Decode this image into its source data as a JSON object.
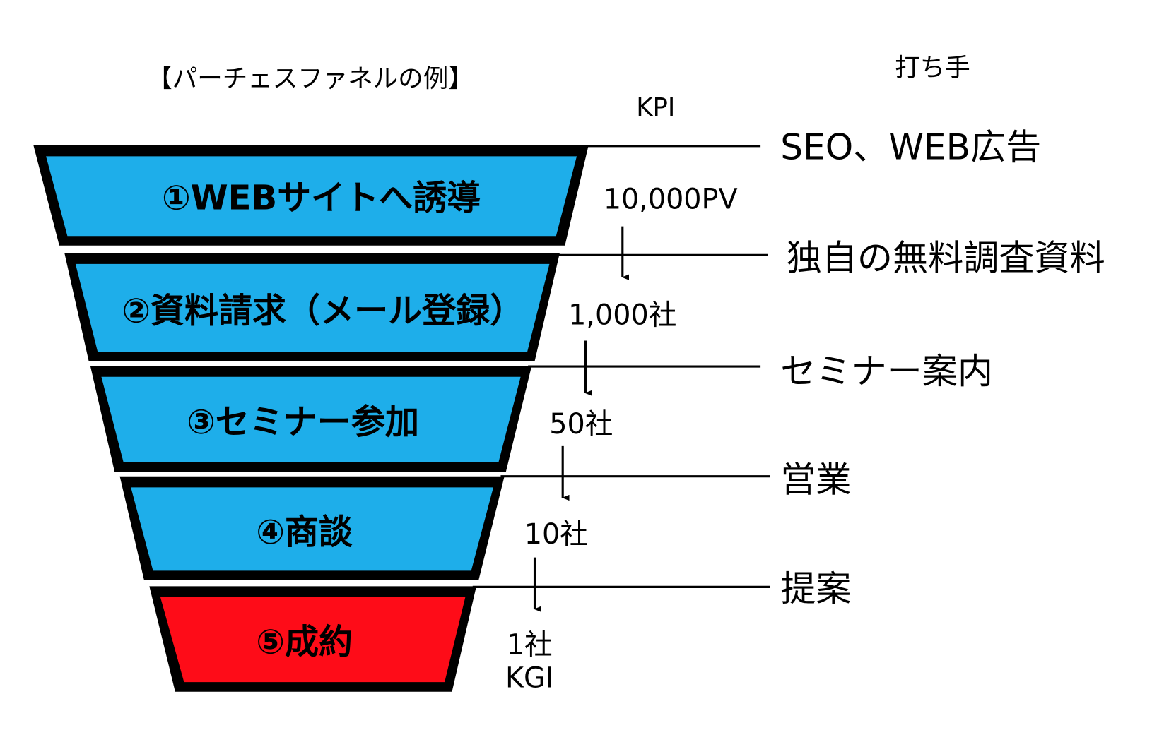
{
  "title": "【パーチェスファネルの例】",
  "kpi_header": "KPI",
  "tactics_header": "打ち手",
  "colors": {
    "stage_fill": "#1eaeea",
    "final_fill": "#fe0c18",
    "outline": "#000000"
  },
  "stages": [
    {
      "label": "①WEBサイトへ誘導"
    },
    {
      "label": "②資料請求（メール登録）"
    },
    {
      "label": "③セミナー参加"
    },
    {
      "label": "④商談"
    },
    {
      "label": "⑤成約"
    }
  ],
  "kpis": [
    "10,000PV",
    "1,000社",
    "50社",
    "10社",
    "1社"
  ],
  "kgi_label": "KGI",
  "tactics": [
    "SEO、WEB広告",
    "独自の無料調査資料",
    "セミナー案内",
    "営業",
    "提案"
  ]
}
